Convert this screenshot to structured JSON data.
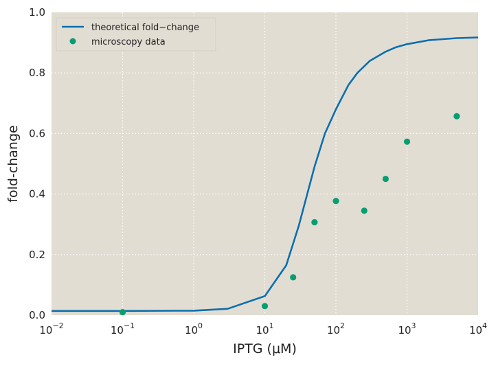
{
  "chart_data": {
    "type": "line",
    "xlabel": "IPTG (μM)",
    "ylabel": "fold-change",
    "x_scale": "log",
    "xlim": [
      0.01,
      10000
    ],
    "ylim": [
      0.0,
      1.0
    ],
    "x_ticks": [
      {
        "base": "10",
        "exp": "−2",
        "value": 0.01
      },
      {
        "base": "10",
        "exp": "−1",
        "value": 0.1
      },
      {
        "base": "10",
        "exp": "0",
        "value": 1
      },
      {
        "base": "10",
        "exp": "1",
        "value": 10
      },
      {
        "base": "10",
        "exp": "2",
        "value": 100
      },
      {
        "base": "10",
        "exp": "3",
        "value": 1000
      },
      {
        "base": "10",
        "exp": "4",
        "value": 10000
      }
    ],
    "y_ticks": [
      "0.0",
      "0.2",
      "0.4",
      "0.6",
      "0.8",
      "1.0"
    ],
    "grid": true,
    "legend_position": "top-left",
    "background_color": "#e2ddd3",
    "series": [
      {
        "name": "theoretical fold−change",
        "kind": "line",
        "color": "#0a6fae",
        "x": [
          0.01,
          0.1,
          1,
          3,
          10,
          20,
          30,
          40,
          50,
          70,
          100,
          150,
          200,
          300,
          500,
          700,
          1000,
          2000,
          5000,
          10000
        ],
        "y": [
          0.014,
          0.014,
          0.015,
          0.021,
          0.063,
          0.165,
          0.295,
          0.405,
          0.49,
          0.6,
          0.68,
          0.76,
          0.8,
          0.84,
          0.87,
          0.885,
          0.895,
          0.908,
          0.915,
          0.917
        ]
      },
      {
        "name": "microscopy data",
        "kind": "scatter",
        "color": "#079e72",
        "x": [
          0.1,
          10,
          25,
          50,
          100,
          250,
          500,
          1000,
          5000
        ],
        "y": [
          0.01,
          0.03,
          0.125,
          0.307,
          0.377,
          0.345,
          0.45,
          0.573,
          0.657
        ]
      }
    ]
  }
}
